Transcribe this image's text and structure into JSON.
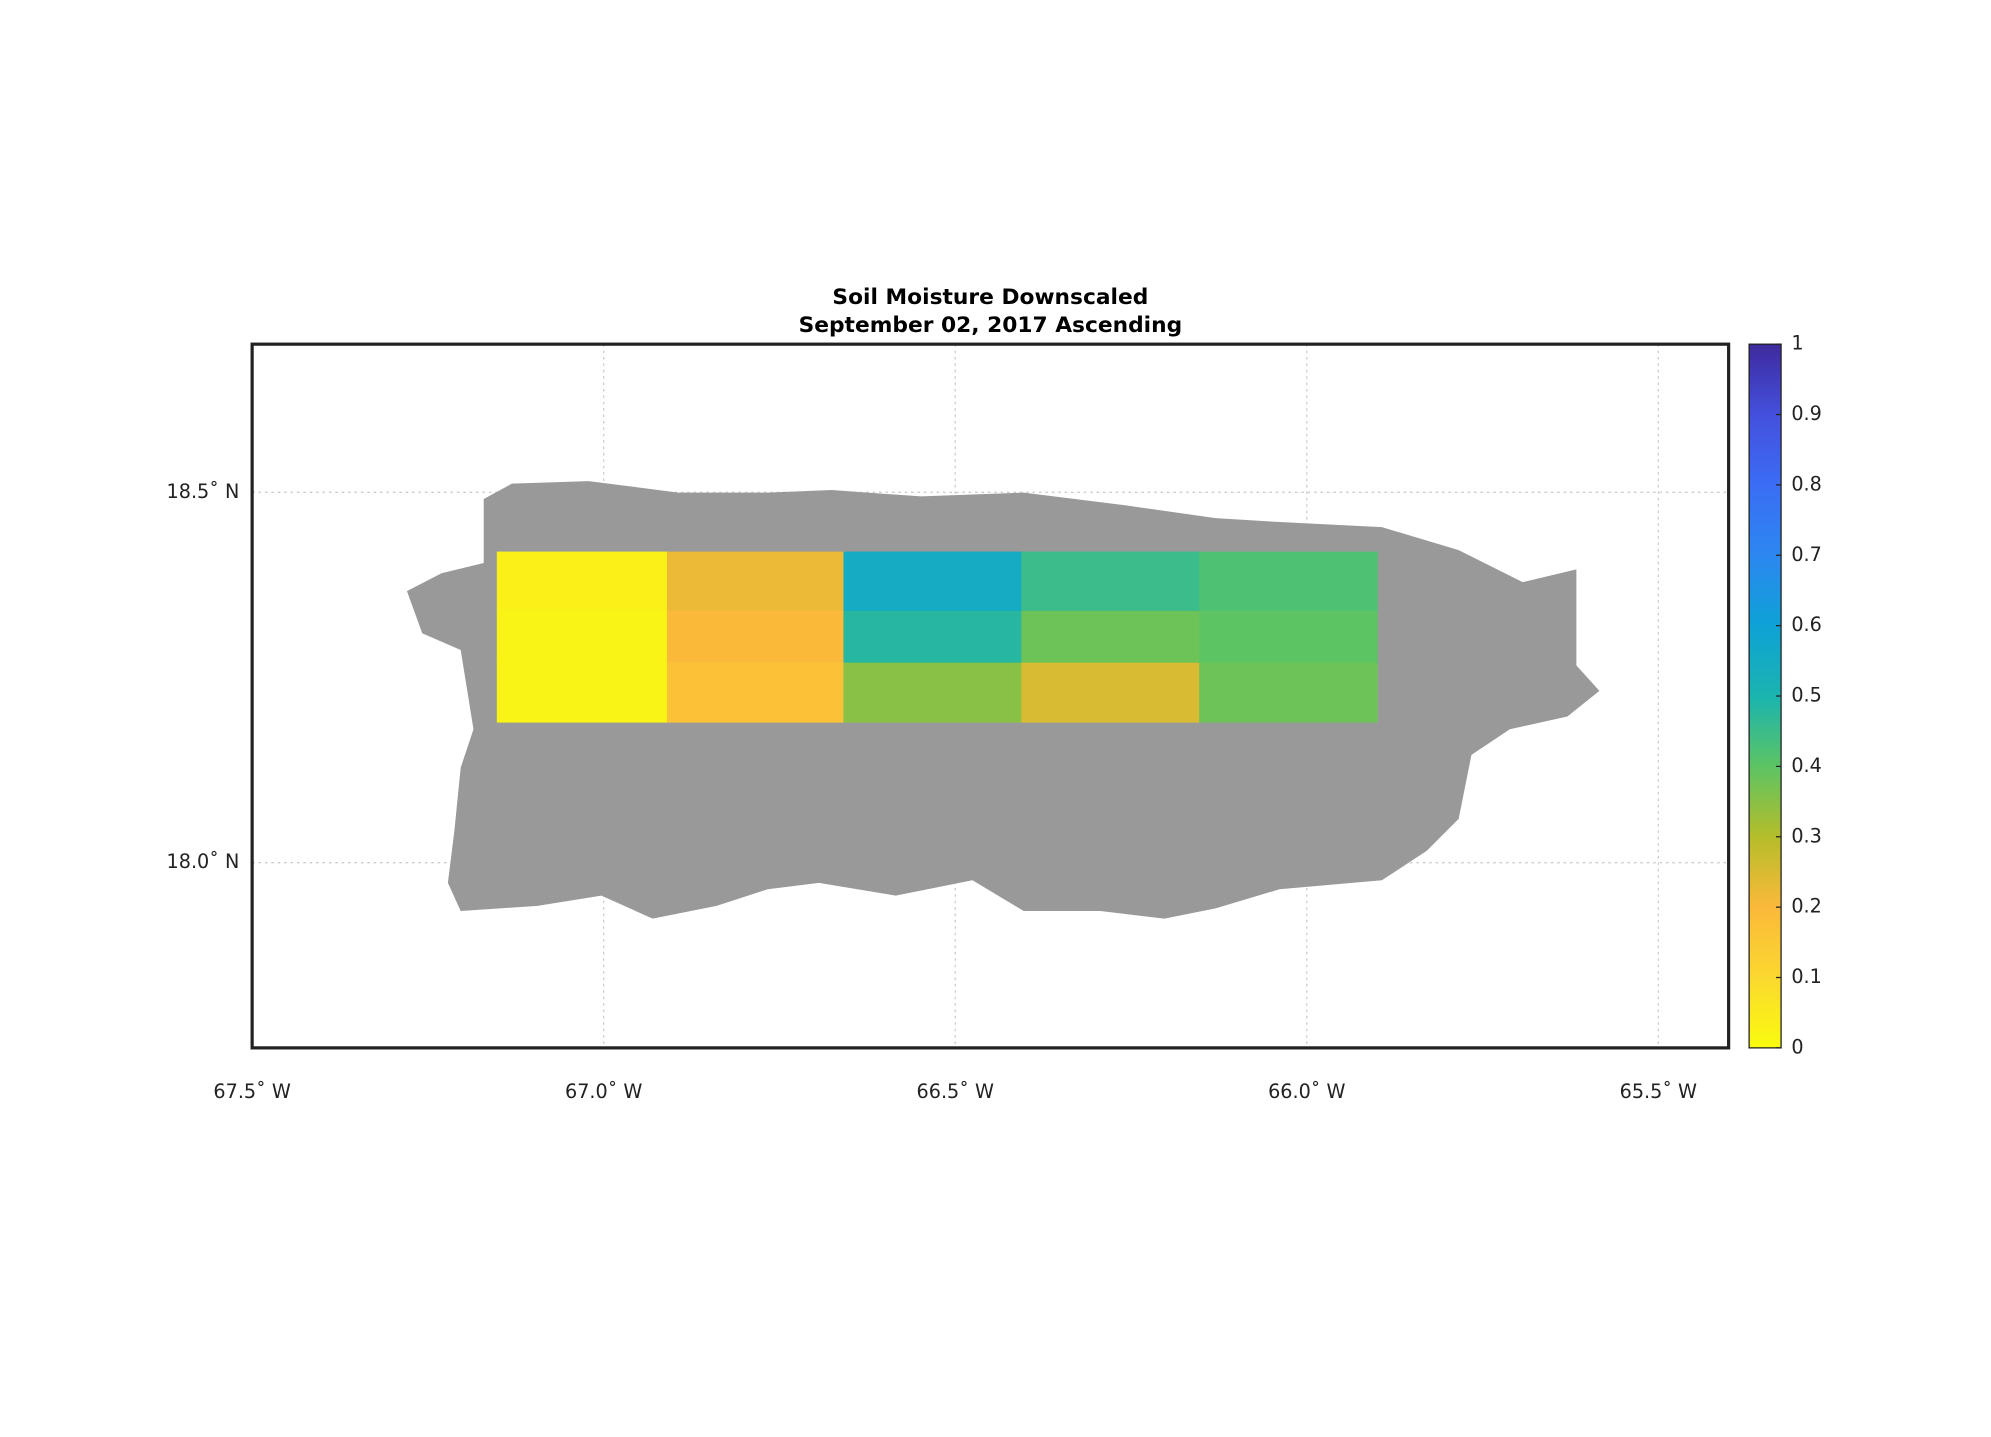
{
  "chart_data": {
    "type": "heatmap",
    "title": [
      "Soil Moisture Downscaled",
      "September 02, 2017 Ascending"
    ],
    "x": [
      -67.152,
      -66.91,
      -66.659,
      -66.406,
      -66.153,
      -65.9
    ],
    "y": [
      18.42,
      18.34,
      18.27,
      18.19
    ],
    "values": [
      [
        0.03,
        0.22,
        0.55,
        0.45,
        0.42
      ],
      [
        0.02,
        0.2,
        0.48,
        0.38,
        0.4
      ],
      [
        0.02,
        0.17,
        0.35,
        0.25,
        0.38
      ]
    ],
    "xlim": [
      -67.5,
      -65.4
    ],
    "ylim": [
      17.75,
      18.7
    ],
    "xticks": [
      {
        "value": -67.5,
        "label": "67.5˚ W"
      },
      {
        "value": -67.0,
        "label": "67.0˚ W"
      },
      {
        "value": -66.5,
        "label": "66.5˚ W"
      },
      {
        "value": -66.0,
        "label": "66.0˚ W"
      },
      {
        "value": -65.5,
        "label": "65.5˚ W"
      }
    ],
    "yticks": [
      {
        "value": 18.0,
        "label": "18.0˚ N"
      },
      {
        "value": 18.5,
        "label": "18.5˚ N"
      }
    ],
    "grid": true,
    "colorbar": {
      "lim": [
        0,
        1
      ],
      "ticks": [
        0,
        0.1,
        0.2,
        0.3,
        0.4,
        0.5,
        0.6,
        0.7,
        0.8,
        0.9,
        1
      ],
      "colors": [
        "#f9fb0e",
        "#fbd82f",
        "#fbb93a",
        "#b5bd2a",
        "#5cc463",
        "#1ab4b0",
        "#0ea2d6",
        "#2c87f0",
        "#3b6df5",
        "#4450dd",
        "#3e2a9e"
      ]
    }
  }
}
